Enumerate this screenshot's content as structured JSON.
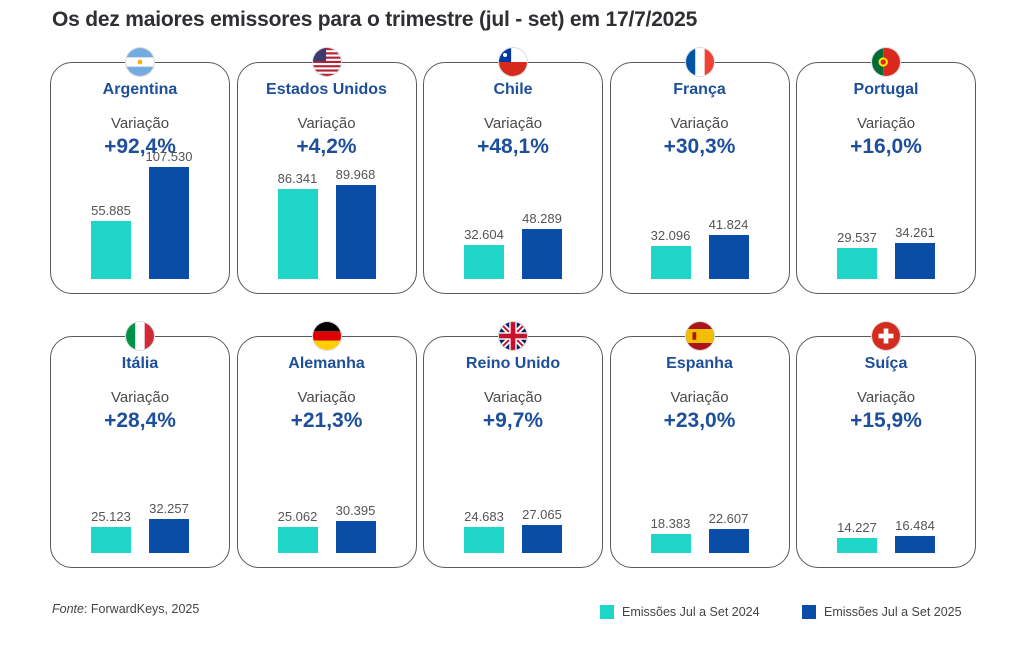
{
  "title": "Os dez maiores emissores para o trimestre (jul - set) em 17/7/2025",
  "source": {
    "prefix": "Fonte",
    "text": ": ForwardKeys, 2025"
  },
  "variation_label": "Variação",
  "colors": {
    "s2024": "#1fd6c9",
    "s2025": "#0a4da6",
    "accent": "#1d4f9a"
  },
  "chart_data": {
    "type": "bar",
    "title": "Os dez maiores emissores para o trimestre (jul - set) em 17/7/2025",
    "series": [
      {
        "name": "Emissões Jul a Set 2024"
      },
      {
        "name": "Emissões Jul a Set 2025"
      }
    ],
    "legend_position": "bottom-right",
    "panels": [
      {
        "country": "Argentina",
        "flag": "argentina-flag-icon",
        "variation": "+92,4%",
        "v2024": 55885,
        "v2025": 107530,
        "label2024": "55.885",
        "label2025": "107.530"
      },
      {
        "country": "Estados Unidos",
        "flag": "usa-flag-icon",
        "variation": "+4,2%",
        "v2024": 86341,
        "v2025": 89968,
        "label2024": "86.341",
        "label2025": "89.968"
      },
      {
        "country": "Chile",
        "flag": "chile-flag-icon",
        "variation": "+48,1%",
        "v2024": 32604,
        "v2025": 48289,
        "label2024": "32.604",
        "label2025": "48.289"
      },
      {
        "country": "França",
        "flag": "france-flag-icon",
        "variation": "+30,3%",
        "v2024": 32096,
        "v2025": 41824,
        "label2024": "32.096",
        "label2025": "41.824"
      },
      {
        "country": "Portugal",
        "flag": "portugal-flag-icon",
        "variation": "+16,0%",
        "v2024": 29537,
        "v2025": 34261,
        "label2024": "29.537",
        "label2025": "34.261"
      },
      {
        "country": "Itália",
        "flag": "italy-flag-icon",
        "variation": "+28,4%",
        "v2024": 25123,
        "v2025": 32257,
        "label2024": "25.123",
        "label2025": "32.257"
      },
      {
        "country": "Alemanha",
        "flag": "germany-flag-icon",
        "variation": "+21,3%",
        "v2024": 25062,
        "v2025": 30395,
        "label2024": "25.062",
        "label2025": "30.395"
      },
      {
        "country": "Reino Unido",
        "flag": "uk-flag-icon",
        "variation": "+9,7%",
        "v2024": 24683,
        "v2025": 27065,
        "label2024": "24.683",
        "label2025": "27.065"
      },
      {
        "country": "Espanha",
        "flag": "spain-flag-icon",
        "variation": "+23,0%",
        "v2024": 18383,
        "v2025": 22607,
        "label2024": "18.383",
        "label2025": "22.607"
      },
      {
        "country": "Suíça",
        "flag": "switzerland-flag-icon",
        "variation": "+15,9%",
        "v2024": 14227,
        "v2025": 16484,
        "label2024": "14.227",
        "label2025": "16.484"
      }
    ]
  }
}
